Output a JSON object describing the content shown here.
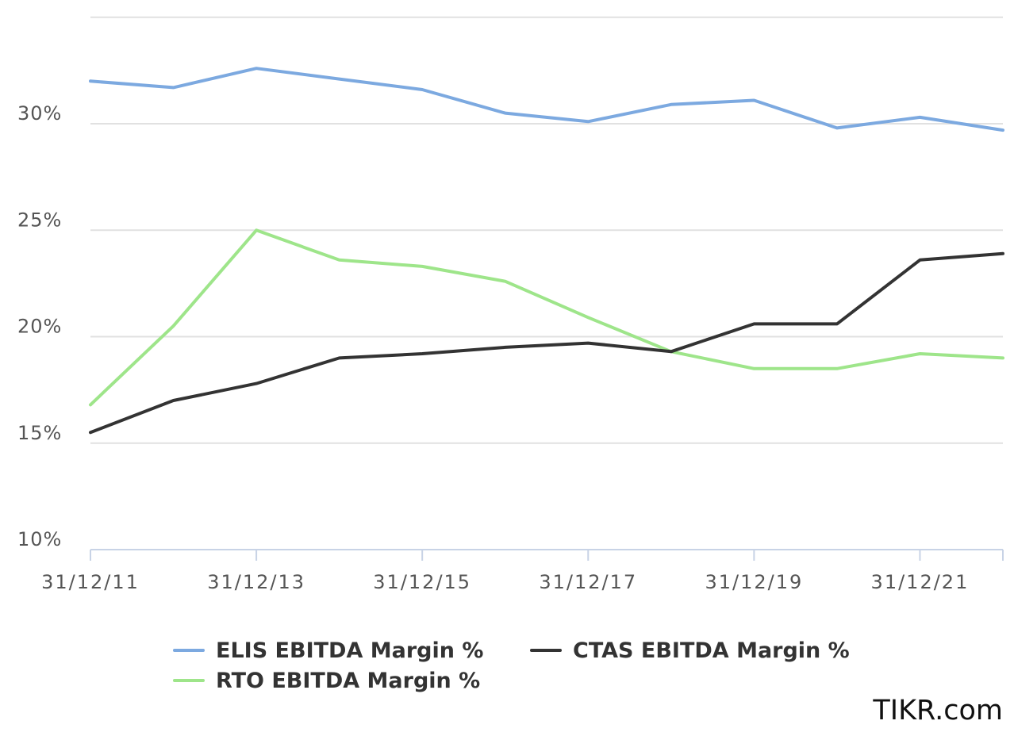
{
  "chart_data": {
    "type": "line",
    "title": "",
    "xlabel": "",
    "ylabel": "",
    "x": [
      "31/12/11",
      "31/12/12",
      "31/12/13",
      "31/12/14",
      "31/12/15",
      "31/12/16",
      "31/12/17",
      "31/12/18",
      "31/12/19",
      "31/12/20",
      "31/12/21",
      "31/12/22"
    ],
    "x_tick_labels": [
      "31/12/11",
      "31/12/13",
      "31/12/15",
      "31/12/17",
      "31/12/19",
      "31/12/21"
    ],
    "y_tick_labels": [
      "10%",
      "15%",
      "20%",
      "25%",
      "30%"
    ],
    "y_ticks": [
      10,
      15,
      20,
      25,
      30
    ],
    "ylim": [
      10,
      35
    ],
    "grid": true,
    "legend_position": "bottom",
    "series": [
      {
        "name": "ELIS EBITDA Margin %",
        "color": "#7ca9e0",
        "values": [
          32.0,
          31.7,
          32.6,
          32.1,
          31.6,
          30.5,
          30.1,
          30.9,
          31.1,
          29.8,
          30.3,
          29.7
        ]
      },
      {
        "name": "CTAS EBITDA Margin %",
        "color": "#333333",
        "values": [
          15.5,
          17.0,
          17.8,
          19.0,
          19.2,
          19.5,
          19.7,
          19.3,
          20.6,
          20.6,
          23.6,
          23.9
        ]
      },
      {
        "name": "RTO EBITDA Margin %",
        "color": "#9ee58a",
        "values": [
          16.8,
          20.5,
          25.0,
          23.6,
          23.3,
          22.6,
          20.9,
          19.3,
          18.5,
          18.5,
          19.2,
          19.0
        ]
      }
    ]
  },
  "credit": "TIKR.com"
}
